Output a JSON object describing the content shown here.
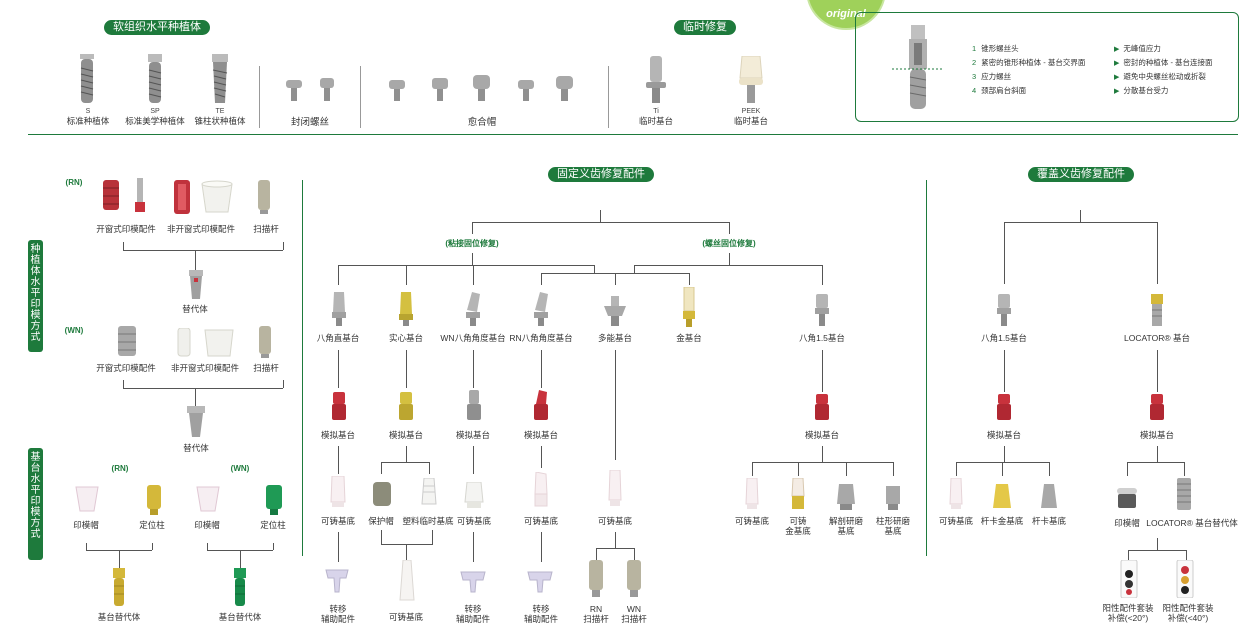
{
  "top": {
    "soft_tissue_title": "软组织水平种植体",
    "temporary_title": "临时修复",
    "implants": [
      {
        "code": "S",
        "name": "标准种植体"
      },
      {
        "code": "SP",
        "name": "标准美学种植体"
      },
      {
        "code": "TE",
        "name": "锥柱状种植体"
      }
    ],
    "closure_screw": "封闭螺丝",
    "healing_cap": "愈合帽",
    "temp_abutments": [
      {
        "code": "Ti",
        "name": "临时基台"
      },
      {
        "code": "PEEK",
        "name": "临时基台"
      }
    ],
    "seal_text": "original"
  },
  "legend": {
    "numbered": [
      {
        "n": "1",
        "text": "锥形螺丝头"
      },
      {
        "n": "2",
        "text": "紧密的锥形种植体 - 基台交界面"
      },
      {
        "n": "3",
        "text": "应力螺丝"
      },
      {
        "n": "4",
        "text": "颈部肩台斜面"
      }
    ],
    "benefits": [
      "无峰值应力",
      "密封的种植体 - 基台连接面",
      "避免中央螺丝松动或折裂",
      "分散基台受力"
    ]
  },
  "left": {
    "implant_level_title": "种植体水平印模方式",
    "abutment_level_title": "基台水平印模方式",
    "rn_tag": "(RN)",
    "wn_tag": "(WN)",
    "rn_items": [
      "开窗式印模配件",
      "非开窗式印模配件",
      "扫描杆"
    ],
    "rn_replica": "替代体",
    "wn_items": [
      "开窗式印模配件",
      "非开窗式印模配件",
      "扫描杆"
    ],
    "wn_replica": "替代体",
    "abut_rn_tag": "(RN)",
    "abut_wn_tag": "(WN)",
    "abut_rn_items": [
      "印模帽",
      "定位柱"
    ],
    "abut_wn_items": [
      "印模帽",
      "定位柱"
    ],
    "abut_replica_rn": "基台替代体",
    "abut_replica_wn": "基台替代体"
  },
  "fixed": {
    "title": "固定义齿修复配件",
    "cemented": "(粘接固位修复)",
    "screwed": "(螺丝固位修复)",
    "abutments": [
      "八角直基台",
      "实心基台",
      "WN八角角度基台",
      "RN八角角度基台",
      "多能基台",
      "金基台",
      "八角1.5基台"
    ],
    "analogs": [
      "模拟基台",
      "模拟基台",
      "模拟基台",
      "模拟基台",
      "模拟基台"
    ],
    "row3": [
      "可铸基底",
      "保护帽",
      "塑料临时基底",
      "可铸基底",
      "可铸基底",
      "可铸基底"
    ],
    "row3_right": [
      {
        "l1": "可铸基底",
        "l2": ""
      },
      {
        "l1": "可铸",
        "l2": "金基底"
      },
      {
        "l1": "解剖研磨",
        "l2": "基底"
      },
      {
        "l1": "柱形研磨",
        "l2": "基底"
      }
    ],
    "row4": [
      {
        "l1": "转移",
        "l2": "辅助配件"
      },
      {
        "l1": "可铸基底",
        "l2": ""
      },
      {
        "l1": "转移",
        "l2": "辅助配件"
      },
      {
        "l1": "转移",
        "l2": "辅助配件"
      },
      {
        "l1": "RN",
        "l2": "扫描杆"
      },
      {
        "l1": "WN",
        "l2": "扫描杆"
      }
    ]
  },
  "overdenture": {
    "title": "覆盖义齿修复配件",
    "abutments": [
      "八角1.5基台",
      "LOCATOR® 基台"
    ],
    "analogs": [
      "模拟基台",
      "模拟基台"
    ],
    "left_row3": [
      "可铸基底",
      "杆卡金基底",
      "杆卡基底"
    ],
    "right_row3": [
      "印模帽",
      "LOCATOR® 基台替代体"
    ],
    "right_row4": [
      {
        "l1": "阳性配件套装",
        "l2": "补偿(<20°)"
      },
      {
        "l1": "阳性配件套装",
        "l2": "补偿(<40°)"
      }
    ]
  },
  "colors": {
    "brand_green": "#1e7a3c",
    "analog_red": "#c8323c",
    "gold": "#d4b83a",
    "titanium": "#a8a8a8"
  }
}
